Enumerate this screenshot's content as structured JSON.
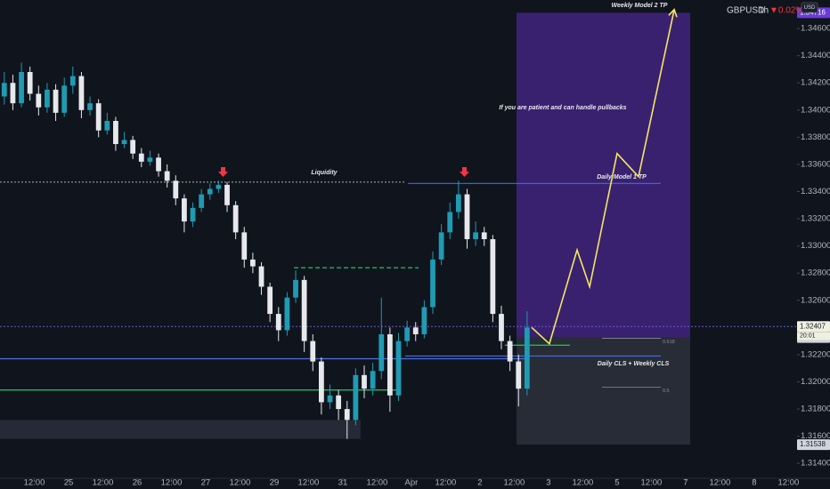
{
  "chart_data": {
    "type": "candlestick",
    "symbol": "GBPUSD",
    "interval": "1h",
    "change": {
      "value": -0.02,
      "label": "▼0.02%"
    },
    "currency": "USD",
    "colors": {
      "up": "#1f9bb3",
      "down": "#e6e8ec",
      "background": "#10141d"
    },
    "xlim": [
      0,
      279
    ],
    "ylim": [
      1.3129,
      1.3481
    ],
    "grid": false,
    "x": [
      1.5,
      4.5,
      7.5,
      10.5,
      13.5,
      16.5,
      19.5,
      22.5,
      25.5,
      28.5,
      31.5,
      34.5,
      37.5,
      40.5,
      43.5,
      46.5,
      49.5,
      52.5,
      55.5,
      58.5,
      61.5,
      64.5,
      67.5,
      70.5,
      73.5,
      76.5,
      79.5,
      82.5,
      85.5,
      88.5,
      91.5,
      94.5,
      97.5,
      100.5,
      103.5,
      106.5,
      109.5,
      112.5,
      115.5,
      118.5,
      121.5,
      124.5,
      127.5,
      130.5,
      133.5,
      136.5,
      139.5,
      142.5,
      145.5,
      148.5,
      151.5,
      154.5,
      157.5,
      160.5,
      163.5,
      166.5,
      169.5,
      172.5,
      175.5,
      178.5,
      181.5,
      184.5
    ],
    "open": [
      1.341,
      1.342,
      1.3405,
      1.3428,
      1.3412,
      1.3402,
      1.3415,
      1.3398,
      1.3418,
      1.3425,
      1.34,
      1.3405,
      1.3385,
      1.3392,
      1.3375,
      1.3378,
      1.3368,
      1.3362,
      1.3365,
      1.3355,
      1.3348,
      1.3335,
      1.3318,
      1.3328,
      1.3338,
      1.3342,
      1.3345,
      1.333,
      1.331,
      1.329,
      1.3285,
      1.327,
      1.325,
      1.3238,
      1.3262,
      1.3275,
      1.323,
      1.3215,
      1.3185,
      1.319,
      1.318,
      1.3172,
      1.3205,
      1.3195,
      1.3208,
      1.3235,
      1.319,
      1.323,
      1.324,
      1.3235,
      1.3255,
      1.329,
      1.331,
      1.3325,
      1.3338,
      1.3305,
      1.331,
      1.3305,
      1.325,
      1.323,
      1.3215,
      1.3195
    ],
    "high": [
      1.3428,
      1.3426,
      1.3435,
      1.3432,
      1.3418,
      1.342,
      1.3419,
      1.3424,
      1.3432,
      1.3428,
      1.341,
      1.3408,
      1.3398,
      1.3395,
      1.3384,
      1.3381,
      1.3372,
      1.337,
      1.3368,
      1.336,
      1.3352,
      1.3338,
      1.3332,
      1.3342,
      1.3346,
      1.3348,
      1.3347,
      1.3333,
      1.3314,
      1.3295,
      1.3288,
      1.3273,
      1.3255,
      1.3266,
      1.3282,
      1.3278,
      1.3235,
      1.3218,
      1.3198,
      1.3194,
      1.3186,
      1.321,
      1.3212,
      1.3214,
      1.3262,
      1.324,
      1.3236,
      1.3245,
      1.3244,
      1.326,
      1.3296,
      1.3316,
      1.3332,
      1.3348,
      1.3342,
      1.3318,
      1.3314,
      1.3308,
      1.3256,
      1.3234,
      1.322,
      1.3252
    ],
    "low": [
      1.3404,
      1.34,
      1.3402,
      1.3407,
      1.3396,
      1.3398,
      1.3392,
      1.3395,
      1.3412,
      1.3394,
      1.3396,
      1.338,
      1.3382,
      1.337,
      1.3372,
      1.3364,
      1.3358,
      1.3359,
      1.3351,
      1.3343,
      1.333,
      1.331,
      1.3314,
      1.3325,
      1.3334,
      1.3339,
      1.3325,
      1.3305,
      1.3284,
      1.328,
      1.3264,
      1.3244,
      1.323,
      1.3234,
      1.3258,
      1.3222,
      1.3208,
      1.3176,
      1.318,
      1.3172,
      1.3158,
      1.3168,
      1.3188,
      1.319,
      1.3202,
      1.3178,
      1.3186,
      1.3226,
      1.323,
      1.3232,
      1.325,
      1.3286,
      1.3305,
      1.332,
      1.3298,
      1.33,
      1.33,
      1.3244,
      1.3224,
      1.3208,
      1.3182,
      1.319
    ],
    "close": [
      1.342,
      1.3405,
      1.3428,
      1.3412,
      1.3402,
      1.3415,
      1.3398,
      1.3418,
      1.3425,
      1.34,
      1.3405,
      1.3385,
      1.3392,
      1.3375,
      1.3378,
      1.3368,
      1.3362,
      1.3365,
      1.3355,
      1.3348,
      1.3335,
      1.3318,
      1.3328,
      1.3338,
      1.3342,
      1.3345,
      1.333,
      1.331,
      1.329,
      1.3285,
      1.327,
      1.325,
      1.3238,
      1.3262,
      1.3275,
      1.323,
      1.3215,
      1.3185,
      1.319,
      1.318,
      1.3172,
      1.3205,
      1.3195,
      1.3208,
      1.3235,
      1.319,
      1.323,
      1.324,
      1.3235,
      1.3255,
      1.329,
      1.331,
      1.3325,
      1.3338,
      1.3305,
      1.331,
      1.3305,
      1.325,
      1.323,
      1.3215,
      1.3195,
      1.324
    ],
    "yticks": [
      {
        "value": 1.346,
        "label": "1.34600"
      },
      {
        "value": 1.344,
        "label": "1.34400"
      },
      {
        "value": 1.342,
        "label": "1.34200"
      },
      {
        "value": 1.34,
        "label": "1.34000"
      },
      {
        "value": 1.338,
        "label": "1.33800"
      },
      {
        "value": 1.336,
        "label": "1.33600"
      },
      {
        "value": 1.334,
        "label": "1.33400"
      },
      {
        "value": 1.332,
        "label": "1.33200"
      },
      {
        "value": 1.33,
        "label": "1.33000"
      },
      {
        "value": 1.328,
        "label": "1.32800"
      },
      {
        "value": 1.326,
        "label": "1.32600"
      },
      {
        "value": 1.322,
        "label": "1.32200"
      },
      {
        "value": 1.32,
        "label": "1.32000"
      },
      {
        "value": 1.318,
        "label": "1.31800"
      },
      {
        "value": 1.316,
        "label": "1.31600"
      },
      {
        "value": 1.314,
        "label": "1.31400"
      }
    ],
    "xticks": [
      {
        "value": 12,
        "label": "12:00"
      },
      {
        "value": 24,
        "label": "25"
      },
      {
        "value": 36,
        "label": "12:00"
      },
      {
        "value": 48,
        "label": "26"
      },
      {
        "value": 60,
        "label": "12:00"
      },
      {
        "value": 72,
        "label": "27"
      },
      {
        "value": 84,
        "label": "12:00"
      },
      {
        "value": 96,
        "label": "29"
      },
      {
        "value": 108,
        "label": "12:00"
      },
      {
        "value": 120,
        "label": "31"
      },
      {
        "value": 132,
        "label": "12:00"
      },
      {
        "value": 144,
        "label": "Apr"
      },
      {
        "value": 156,
        "label": "12:00"
      },
      {
        "value": 168,
        "label": "2"
      },
      {
        "value": 180,
        "label": "12:00"
      },
      {
        "value": 192,
        "label": "3"
      },
      {
        "value": 204,
        "label": "12:00"
      },
      {
        "value": 216,
        "label": "5"
      },
      {
        "value": 228,
        "label": "12:00"
      },
      {
        "value": 240,
        "label": "7"
      },
      {
        "value": 252,
        "label": "12:00"
      },
      {
        "value": 264,
        "label": "8"
      },
      {
        "value": 276,
        "label": "12:00"
      }
    ],
    "current": {
      "price": 1.32407,
      "countdown": "20:01"
    },
    "position": {
      "x": [
        180.8,
        241.6
      ],
      "target": 1.34716,
      "entry": 1.32326,
      "stop": 1.31538
    },
    "zone": {
      "x": [
        0,
        126.2
      ],
      "price": [
        1.3158,
        1.3172
      ]
    },
    "levels": [
      {
        "price": 1.3347,
        "x": [
          0,
          141.8
        ],
        "color": "#9aa0a6",
        "style": "dotted"
      },
      {
        "price": 1.3346,
        "x": [
          142.8,
          231.3
        ],
        "color": "#3d6fd6",
        "style": "solid"
      },
      {
        "price": 1.3284,
        "x": [
          102.9,
          146.5
        ],
        "color": "#22c55e",
        "style": "dashed"
      },
      {
        "price": 1.3217,
        "x": [
          0,
          183.9
        ],
        "color": "#4a6fe0",
        "style": "solid"
      },
      {
        "price": 1.3194,
        "x": [
          0,
          138.7
        ],
        "color": "#22c55e",
        "style": "solid"
      },
      {
        "price": 1.3219,
        "x": [
          141.8,
          231.3
        ],
        "color": "#4a6fe0",
        "style": "solid"
      },
      {
        "price": 1.3227,
        "x": [
          176.7,
          199.5
        ],
        "color": "#22c55e",
        "style": "solid"
      }
    ],
    "fib": [
      {
        "level": 0.618,
        "price": 1.3232,
        "x": [
          210.7,
          231.3
        ]
      },
      {
        "level": 0.5,
        "price": 1.3196,
        "x": [
          210.7,
          231.3
        ]
      }
    ],
    "projection": {
      "color": "#f5e663",
      "x": [
        186.1,
        192.3,
        202.0,
        206.4,
        216.0,
        223.5,
        236.0
      ],
      "y": [
        1.324,
        1.3228,
        1.3297,
        1.327,
        1.3368,
        1.3351,
        1.3474
      ]
    },
    "annotations": [
      "Weekly Model 2 TP",
      "If you are patient and can handle pullbacks",
      "Liquidity",
      "Daily Model 1 TP",
      "Daily CLS + Weekly CLS"
    ]
  }
}
